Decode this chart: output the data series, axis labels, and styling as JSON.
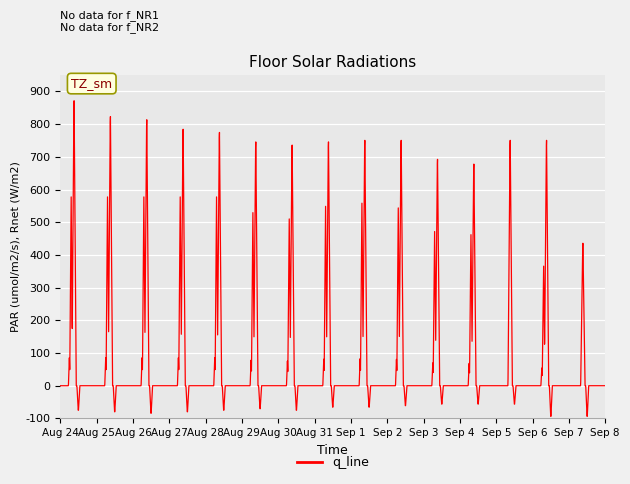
{
  "title": "Floor Solar Radiations",
  "xlabel": "Time",
  "ylabel": "PAR (umol/m2/s), Rnet (W/m2)",
  "ylim": [
    -100,
    950
  ],
  "yticks": [
    -100,
    0,
    100,
    200,
    300,
    400,
    500,
    600,
    700,
    800,
    900
  ],
  "line_color": "red",
  "line_label": "q_line",
  "annotation_text": "No data for f_NR1\nNo data for f_NR2",
  "legend_label_box": "TZ_sm",
  "bg_color": "#e8e8e8",
  "fig_color": "#f0f0f0",
  "xtick_labels": [
    "Aug 24",
    "Aug 25",
    "Aug 26",
    "Aug 27",
    "Aug 28",
    "Aug 29",
    "Aug 30",
    "Aug 31",
    "Sep 1",
    "Sep 2",
    "Sep 3",
    "Sep 4",
    "Sep 5",
    "Sep 6",
    "Sep 7",
    "Sep 8"
  ],
  "n_days": 15,
  "day_patterns": [
    {
      "peak1": 900,
      "peak2": 600,
      "dip": -80
    },
    {
      "peak1": 850,
      "peak2": 600,
      "dip": -85
    },
    {
      "peak1": 840,
      "peak2": 600,
      "dip": -90
    },
    {
      "peak1": 810,
      "peak2": 600,
      "dip": -85
    },
    {
      "peak1": 800,
      "peak2": 600,
      "dip": -80
    },
    {
      "peak1": 770,
      "peak2": 550,
      "dip": -75
    },
    {
      "peak1": 760,
      "peak2": 530,
      "dip": -80
    },
    {
      "peak1": 770,
      "peak2": 570,
      "dip": -70
    },
    {
      "peak1": 775,
      "peak2": 580,
      "dip": -70
    },
    {
      "peak1": 775,
      "peak2": 565,
      "dip": -65
    },
    {
      "peak1": 715,
      "peak2": 490,
      "dip": -60
    },
    {
      "peak1": 700,
      "peak2": 480,
      "dip": -60
    },
    {
      "peak1": 775,
      "peak2": 0,
      "dip": -60
    },
    {
      "peak1": 775,
      "peak2": 380,
      "dip": -100
    },
    {
      "peak1": 450,
      "peak2": 0,
      "dip": -100
    }
  ]
}
